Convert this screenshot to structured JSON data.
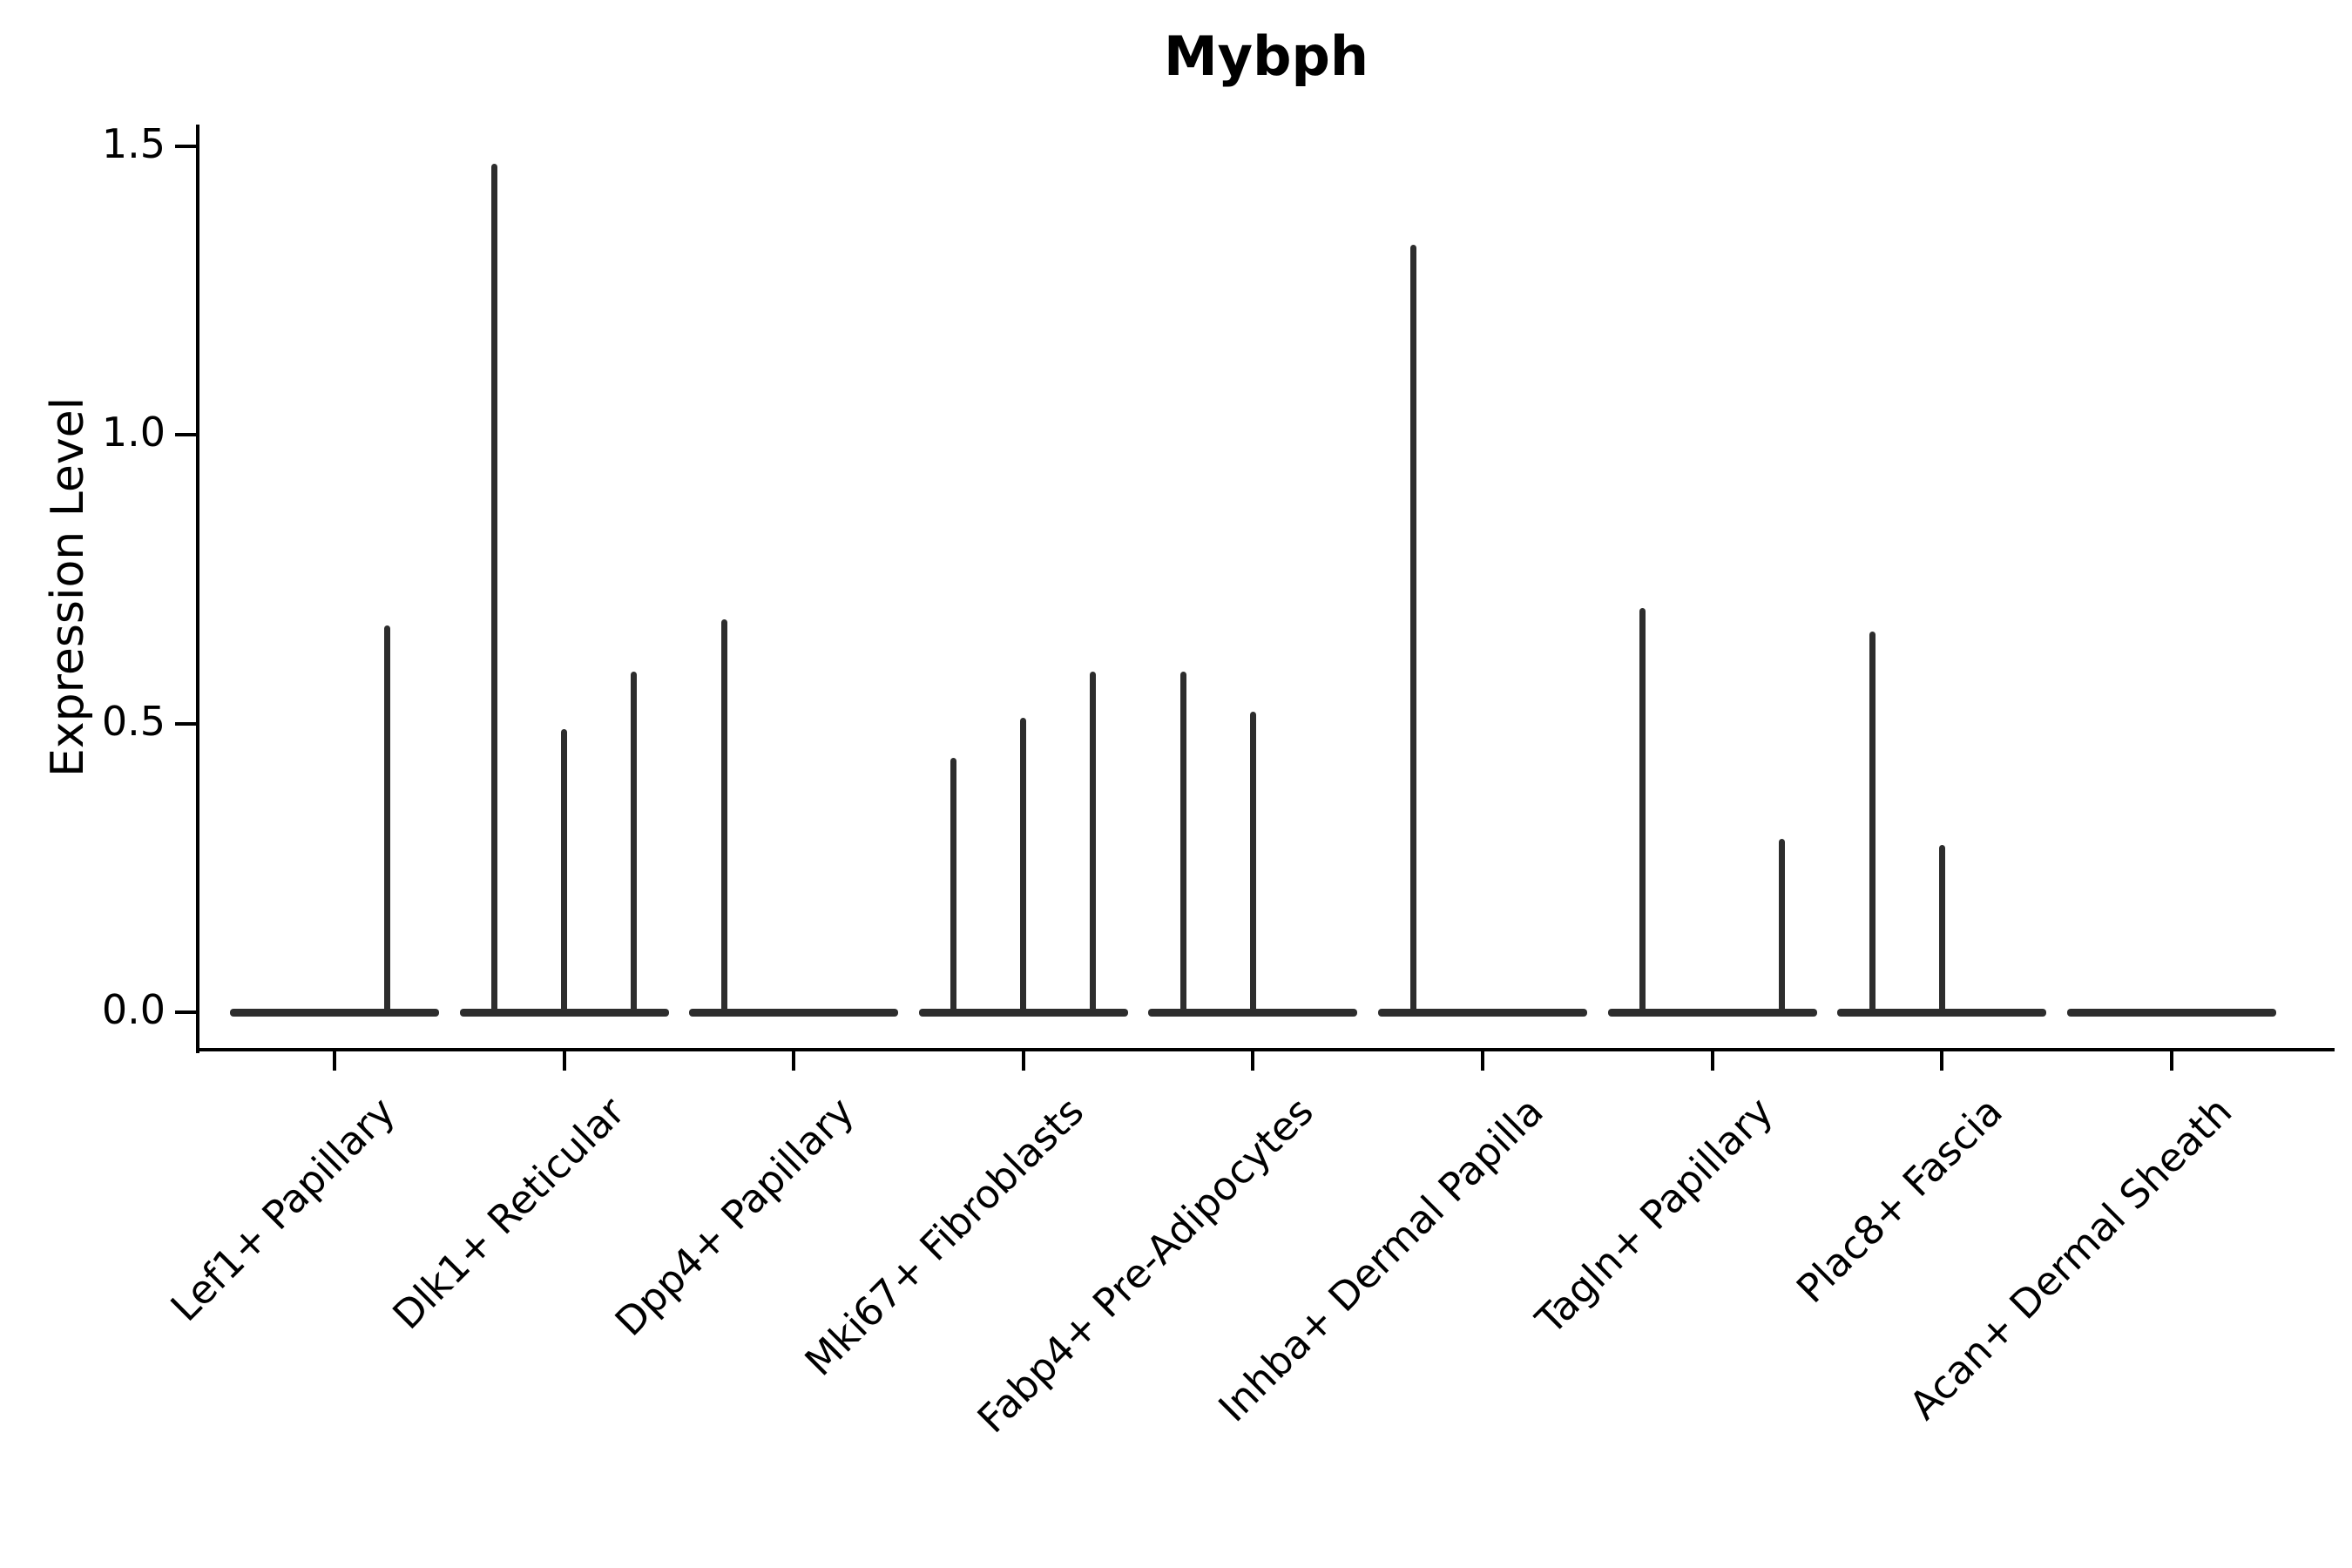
{
  "figure": {
    "title": "Mybph"
  },
  "chart_data": {
    "type": "violin",
    "title": "Mybph",
    "xlabel": "",
    "ylabel": "Expression Level",
    "ylim": [
      -0.06,
      1.54
    ],
    "ytick_values": [
      0.0,
      0.5,
      1.0,
      1.5
    ],
    "ytick_labels": [
      "0.0",
      "0.5",
      "1.0",
      "1.5"
    ],
    "grid": false,
    "legend": "none",
    "note": "Violin plot of Mybph expression per fibroblast subtype; violins are collapsed flat at 0 with thin spikes rising to the maximum expressed value of each dodged sub-violin (sub-violins share each category slot left-to-right).",
    "categories": [
      {
        "label": "Lef1+ Papillary",
        "violin_maxes": [
          0,
          0.67
        ]
      },
      {
        "label": "Dlk1+ Reticular",
        "violin_maxes": [
          1.47,
          0.49,
          0.59
        ]
      },
      {
        "label": "Dpp4+ Papillary",
        "violin_maxes": [
          0.68,
          0,
          0
        ]
      },
      {
        "label": "Mki67+ Fibroblasts",
        "violin_maxes": [
          0.44,
          0.51,
          0.59
        ]
      },
      {
        "label": "Fabp4+ Pre-Adipocytes",
        "violin_maxes": [
          0.59,
          0.52,
          0
        ]
      },
      {
        "label": "Inhba+ Dermal Papilla",
        "violin_maxes": [
          1.33,
          0,
          0
        ]
      },
      {
        "label": "Tagln+ Papillary",
        "violin_maxes": [
          0.7,
          0,
          0.3
        ]
      },
      {
        "label": "Plac8+ Fascia",
        "violin_maxes": [
          0.66,
          0.29,
          0
        ]
      },
      {
        "label": "Acan+ Dermal Sheath",
        "violin_maxes": [
          0
        ]
      }
    ],
    "colors": {
      "violin_line": "#2d2d2d",
      "axis": "#000000",
      "text": "#000000",
      "background": "#ffffff"
    }
  }
}
